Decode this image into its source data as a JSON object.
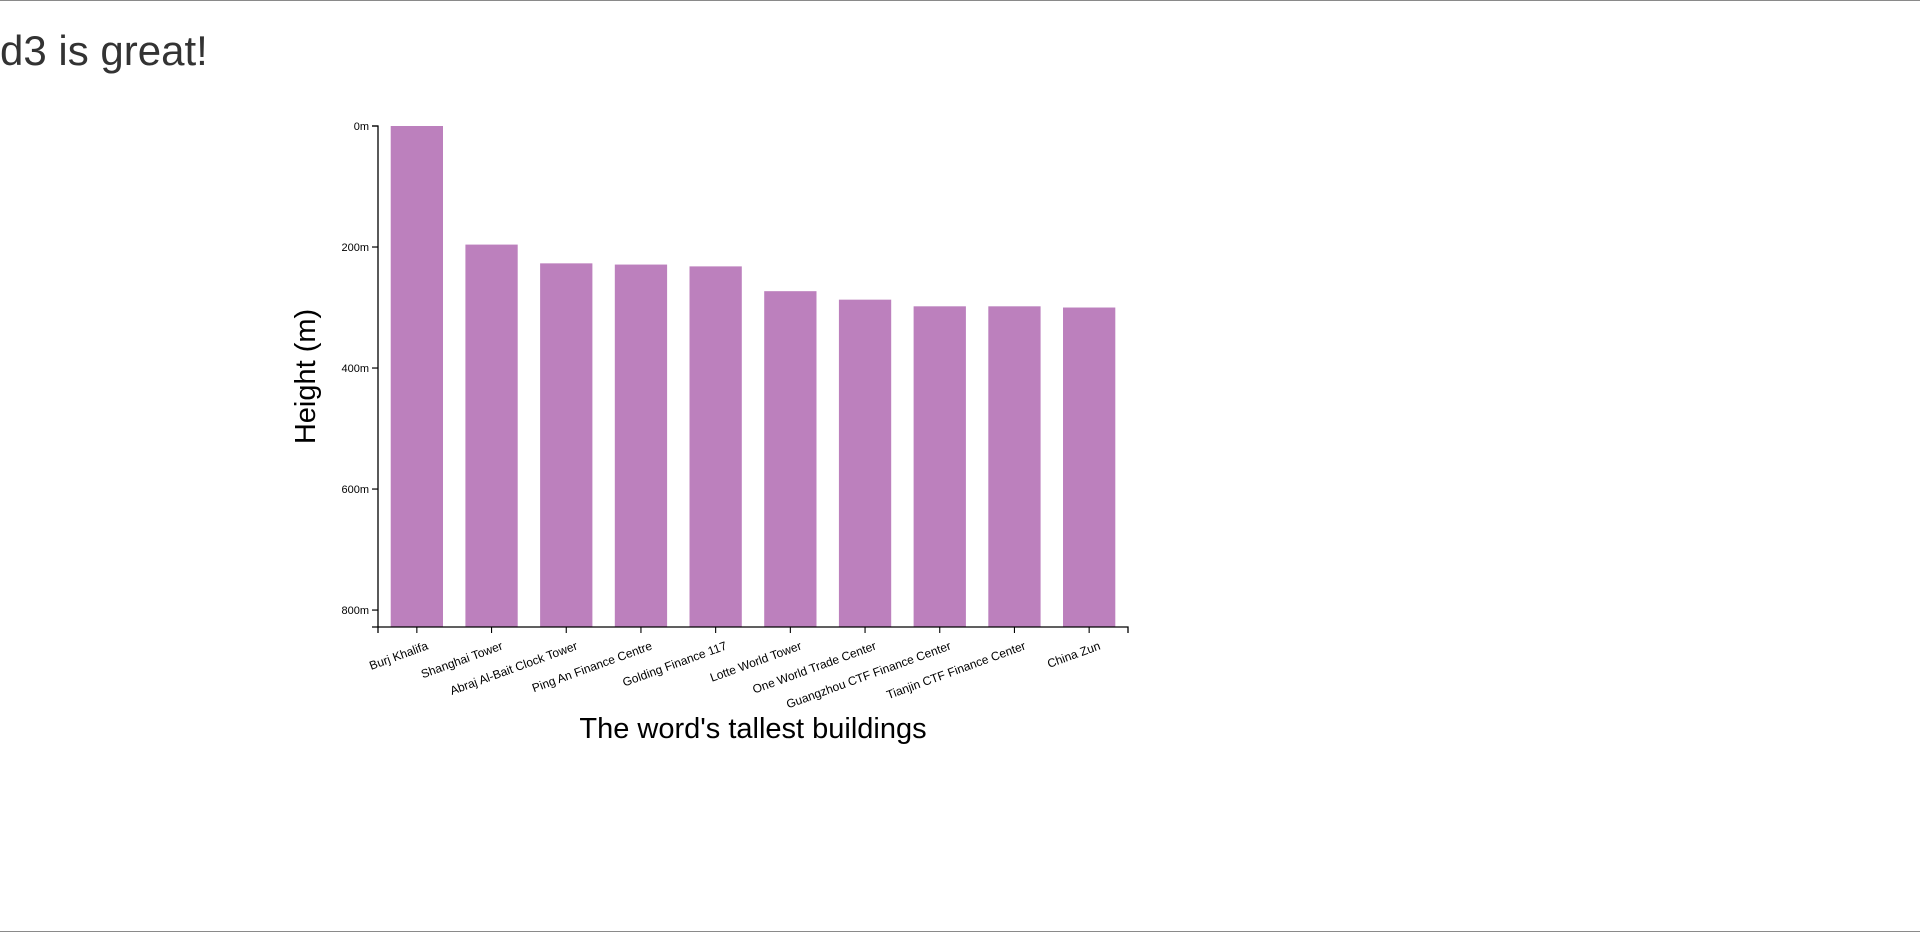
{
  "page": {
    "heading": "d3 is great!"
  },
  "colors": {
    "bar": "#bc80bd",
    "axis": "#000000"
  },
  "chart_data": {
    "type": "bar",
    "categories": [
      "Burj Khalifa",
      "Shanghai Tower",
      "Abraj Al-Bait Clock Tower",
      "Ping An Finance Centre",
      "Golding Finance 117",
      "Lotte World Tower",
      "One World Trade Center",
      "Guangzhou CTF Finance Center",
      "Tianjin CTF Finance Center",
      "China Zun"
    ],
    "values": [
      828,
      632,
      601,
      599,
      596,
      555,
      541,
      530,
      530,
      528
    ],
    "title": "",
    "xlabel": "The word's tallest buildings",
    "ylabel": "Height (m)",
    "ylim": [
      0,
      828
    ],
    "y_ticks": [
      0,
      200,
      400,
      600,
      800
    ],
    "y_tick_suffix": "m",
    "y_axis_inverted": true,
    "grid": false,
    "legend": "none"
  }
}
